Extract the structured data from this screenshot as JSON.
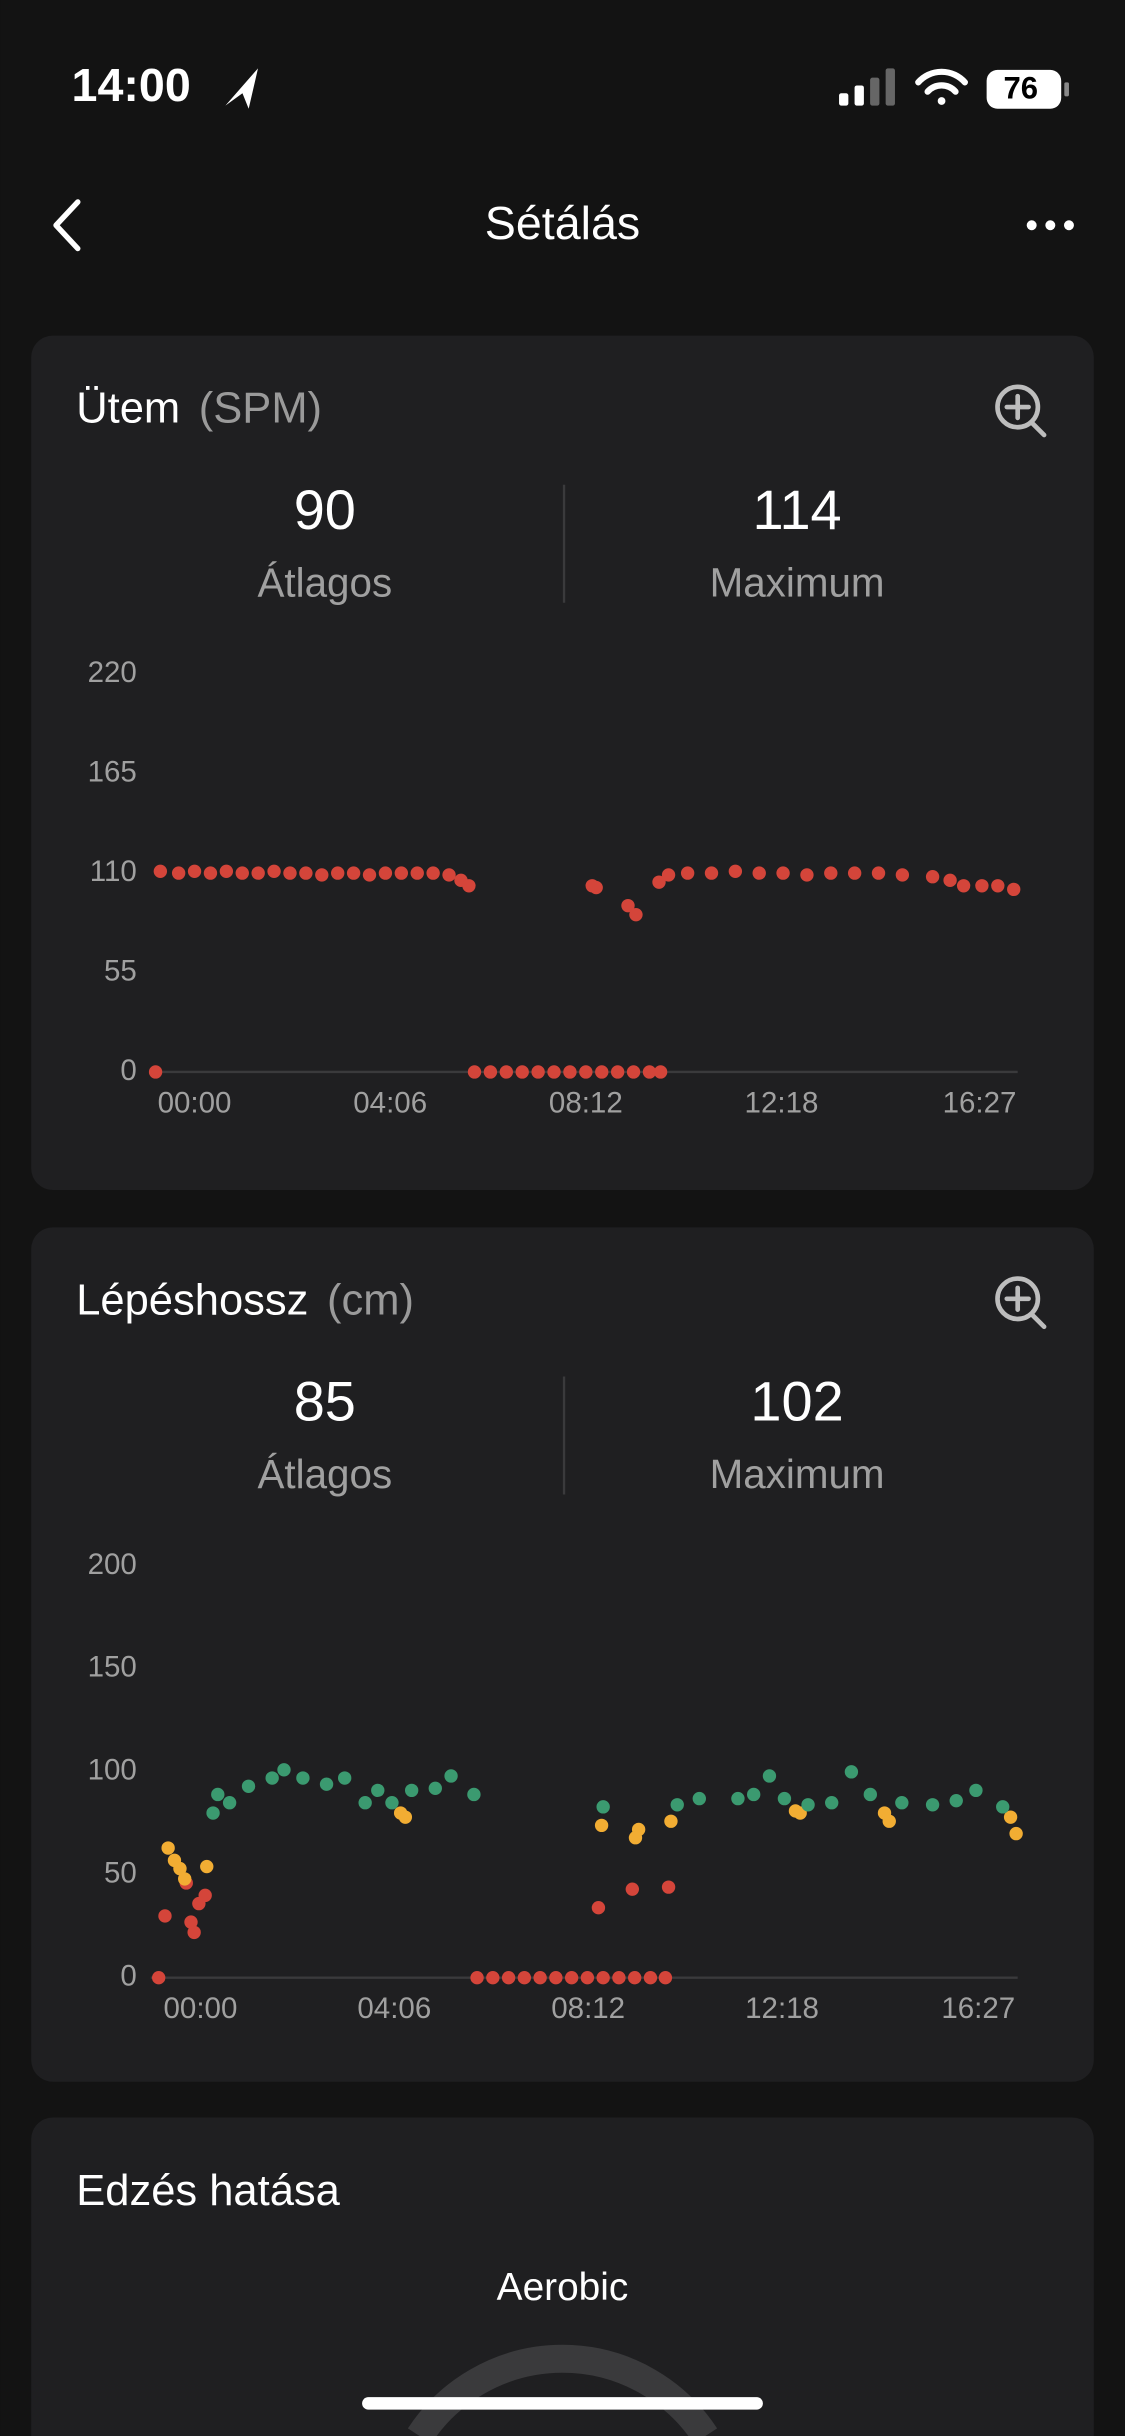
{
  "status_bar": {
    "time": "14:00",
    "battery": "76"
  },
  "header": {
    "title": "Sétálás"
  },
  "chart_data": [
    {
      "type": "scatter",
      "title": "Ütem",
      "unit": "(SPM)",
      "stats": [
        {
          "value": 90,
          "label": "Átlagos"
        },
        {
          "value": 114,
          "label": "Maximum"
        }
      ],
      "xlim": [
        -55,
        1035
      ],
      "xticks": [
        {
          "value": 0,
          "label": "00:00"
        },
        {
          "value": 246,
          "label": "04:06"
        },
        {
          "value": 492,
          "label": "08:12"
        },
        {
          "value": 738,
          "label": "12:18"
        },
        {
          "value": 987,
          "label": "16:27"
        }
      ],
      "ylim": [
        0,
        220
      ],
      "yticks": [
        0,
        55,
        110,
        165,
        220
      ],
      "grid": false,
      "series": [
        {
          "color": "#d4453a",
          "x": [
            -49,
            -43,
            -20,
            0,
            20,
            40,
            60,
            80,
            100,
            120,
            140,
            160,
            180,
            200,
            220,
            240,
            260,
            280,
            300,
            320,
            335,
            345,
            352,
            372,
            392,
            412,
            432,
            452,
            472,
            492,
            512,
            532,
            552,
            572,
            586,
            500,
            505,
            545,
            555,
            584,
            596,
            620,
            650,
            680,
            710,
            740,
            770,
            800,
            830,
            860,
            890,
            928,
            950,
            967,
            990,
            1010,
            1030
          ],
          "values": [
            0,
            111,
            110,
            111,
            110,
            111,
            110,
            110,
            111,
            110,
            110,
            109,
            110,
            110,
            109,
            110,
            110,
            110,
            110,
            109,
            106,
            103,
            0,
            0,
            0,
            0,
            0,
            0,
            0,
            0,
            0,
            0,
            0,
            0,
            0,
            103,
            102,
            92,
            87,
            105,
            109,
            110,
            110,
            111,
            110,
            110,
            109,
            110,
            110,
            110,
            109,
            108,
            106,
            103,
            103,
            103,
            101
          ]
        }
      ]
    },
    {
      "type": "scatter",
      "title": "Lépéshossz",
      "unit": "(cm)",
      "stats": [
        {
          "value": 85,
          "label": "Átlagos"
        },
        {
          "value": 102,
          "label": "Maximum"
        }
      ],
      "xlim": [
        -63,
        1037
      ],
      "xticks": [
        {
          "value": 0,
          "label": "00:00"
        },
        {
          "value": 246,
          "label": "04:06"
        },
        {
          "value": 492,
          "label": "08:12"
        },
        {
          "value": 738,
          "label": "12:18"
        },
        {
          "value": 987,
          "label": "16:27"
        }
      ],
      "ylim": [
        0,
        200
      ],
      "yticks": [
        0,
        50,
        100,
        150,
        200
      ],
      "grid": false,
      "series": [
        {
          "color": "#d4453a",
          "x": [
            -53,
            -45,
            -18,
            -12,
            -8,
            -2,
            6,
            351,
            371,
            391,
            411,
            431,
            451,
            471,
            491,
            511,
            531,
            551,
            571,
            590,
            505,
            548,
            594
          ],
          "values": [
            0,
            30,
            46,
            27,
            22,
            36,
            40,
            0,
            0,
            0,
            0,
            0,
            0,
            0,
            0,
            0,
            0,
            0,
            0,
            0,
            34,
            43,
            44
          ]
        },
        {
          "color": "#f2ad33",
          "x": [
            -41,
            -33,
            -26,
            -20,
            8,
            254,
            260,
            509,
            552,
            556,
            597,
            755,
            761,
            868,
            874,
            1028,
            1035
          ],
          "values": [
            63,
            57,
            53,
            48,
            54,
            80,
            78,
            74,
            68,
            72,
            76,
            81,
            80,
            80,
            76,
            78,
            70
          ]
        },
        {
          "color": "#3b9a70",
          "x": [
            16,
            22,
            37,
            61,
            91,
            106,
            130,
            160,
            183,
            209,
            225,
            243,
            268,
            298,
            318,
            347,
            511,
            605,
            633,
            682,
            702,
            722,
            741,
            771,
            801,
            826,
            850,
            890,
            929,
            959,
            984,
            1018
          ],
          "values": [
            80,
            89,
            85,
            93,
            97,
            101,
            97,
            94,
            97,
            85,
            91,
            85,
            91,
            92,
            98,
            89,
            83,
            84,
            87,
            87,
            89,
            98,
            87,
            84,
            85,
            100,
            89,
            85,
            84,
            86,
            91,
            83
          ]
        }
      ]
    }
  ],
  "training_effect": {
    "title": "Edzés hatása",
    "label": "Aerobic"
  }
}
